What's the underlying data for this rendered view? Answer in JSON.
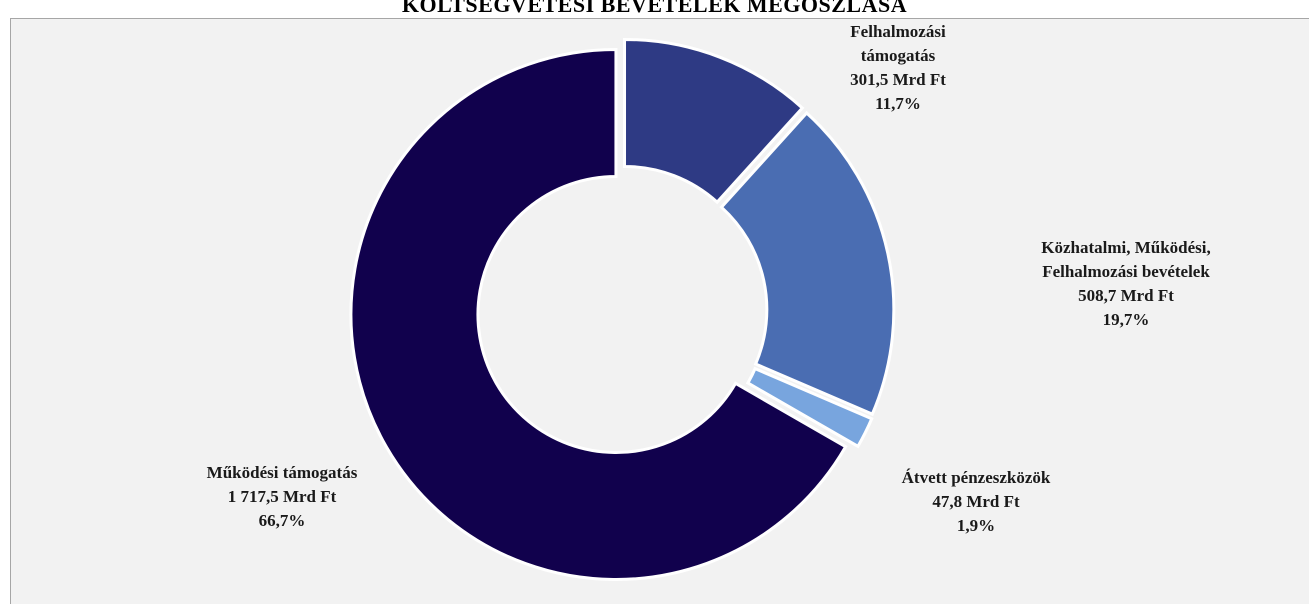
{
  "chart_data": {
    "type": "pie",
    "title": "KÖLTSÉGVETÉSI BEVÉTELEK MEGOSZLÁSA",
    "slices": [
      {
        "name_lines": [
          "Felhalmozási",
          "támogatás"
        ],
        "amount": "301,5 Mrd Ft",
        "value": 301.5,
        "percent": "11,7%",
        "color": "#2e3a84"
      },
      {
        "name_lines": [
          "Közhatalmi, Működési,",
          "Felhalmozási  bevételek"
        ],
        "amount": "508,7 Mrd Ft",
        "value": 508.7,
        "percent": "19,7%",
        "color": "#4a6db2"
      },
      {
        "name_lines": [
          "Átvett pénzeszközök"
        ],
        "amount": "47,8 Mrd Ft",
        "value": 47.8,
        "percent": "1,9%",
        "color": "#78a5de"
      },
      {
        "name_lines": [
          "Működési támogatás"
        ],
        "amount": "1 717,5 Mrd Ft",
        "value": 1717.5,
        "percent": "66,7%",
        "color": "#11014d"
      }
    ],
    "hole": "donut",
    "legend": "none"
  }
}
